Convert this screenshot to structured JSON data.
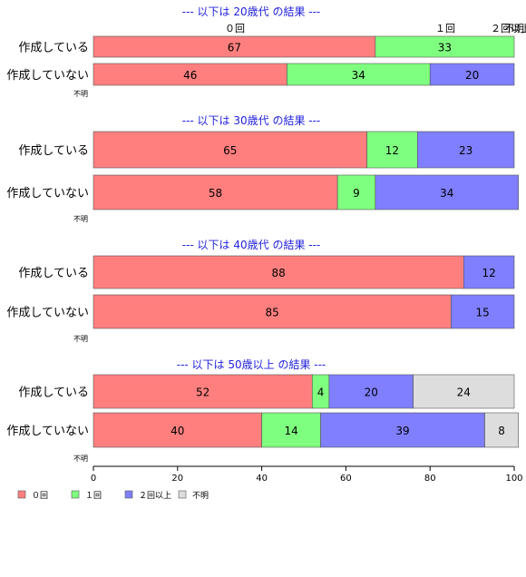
{
  "chart_data": {
    "type": "bar",
    "orientation": "horizontal",
    "stacked": true,
    "xlim": [
      0,
      100
    ],
    "x_ticks": [
      "0",
      "20",
      "40",
      "60",
      "80",
      "100"
    ],
    "top_category_labels": [
      "０回",
      "１回",
      "２回以上",
      "不明"
    ],
    "legend": {
      "placement": "bottom-left",
      "entries": [
        {
          "name": "０回",
          "color": "#ff7f7f"
        },
        {
          "name": "１回",
          "color": "#7fff7f"
        },
        {
          "name": "２回以上",
          "color": "#7f7fff"
        },
        {
          "name": "不明",
          "color": "#dddddd"
        }
      ]
    },
    "panels": [
      {
        "title": "--- 以下は 20歳代 の結果 ---",
        "rows": [
          {
            "label": "作成している",
            "values": [
              67,
              33,
              0,
              0
            ]
          },
          {
            "label": "作成していない",
            "values": [
              46,
              34,
              20,
              0
            ]
          }
        ],
        "unknown_label": "不明"
      },
      {
        "title": "--- 以下は 30歳代 の結果 ---",
        "rows": [
          {
            "label": "作成している",
            "values": [
              65,
              12,
              23,
              0
            ]
          },
          {
            "label": "作成していない",
            "values": [
              58,
              9,
              34,
              0
            ]
          }
        ],
        "unknown_label": "不明"
      },
      {
        "title": "--- 以下は 40歳代 の結果 ---",
        "rows": [
          {
            "label": "作成している",
            "values": [
              88,
              0,
              12,
              0
            ]
          },
          {
            "label": "作成していない",
            "values": [
              85,
              0,
              15,
              0
            ]
          }
        ],
        "unknown_label": "不明"
      },
      {
        "title": "--- 以下は 50歳以上 の結果 ---",
        "rows": [
          {
            "label": "作成している",
            "values": [
              52,
              4,
              20,
              24
            ]
          },
          {
            "label": "作成していない",
            "values": [
              40,
              14,
              39,
              8
            ]
          }
        ],
        "unknown_label": "不明"
      }
    ]
  }
}
